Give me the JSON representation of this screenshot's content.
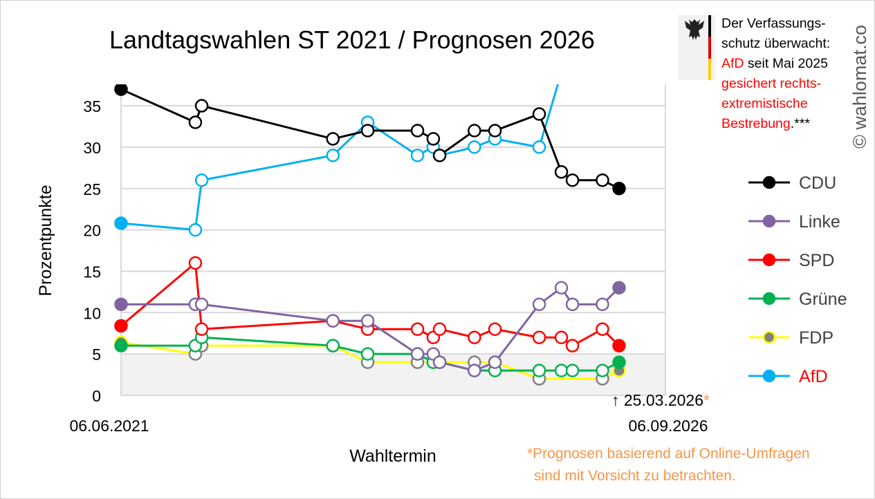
{
  "chart_data": {
    "type": "line",
    "title": "Landtagswahlen ST 2021 / Prognosen 2026",
    "xlabel": "Wahltermin",
    "ylabel": "Prozentpunkte",
    "x_unit": "months since 06.06.2021",
    "x_start_label": "06.06.2021",
    "x_end_label": "06.09.2026",
    "marker_label": "↑ 25.03.2026",
    "marker_asterisk": "*",
    "ylim": [
      0,
      37.5
    ],
    "xlim": [
      0,
      63
    ],
    "yticks": [
      "0",
      "5",
      "10",
      "15",
      "20",
      "25",
      "30",
      "35"
    ],
    "shaded_below": 5,
    "x": [
      0,
      9.4,
      10.2,
      26.8,
      31.2,
      37.5,
      39.5,
      40.3,
      44.7,
      47.3,
      52.9,
      55.7,
      57.1,
      60.9,
      63
    ],
    "series": [
      {
        "name": "CDU",
        "color": "#000000",
        "values": [
          37,
          33,
          35,
          31,
          32,
          32,
          31,
          29,
          32,
          32,
          34,
          27,
          26,
          26,
          25
        ]
      },
      {
        "name": "Linke",
        "color": "#8064a2",
        "values": [
          11,
          11,
          11,
          9,
          9,
          5,
          5,
          4,
          3,
          4,
          11,
          13,
          11,
          11,
          13
        ]
      },
      {
        "name": "SPD",
        "color": "#ff0000",
        "values": [
          8.4,
          16,
          8,
          9,
          8,
          8,
          7,
          8,
          7,
          8,
          7,
          7,
          6,
          8,
          6
        ]
      },
      {
        "name": "Grüne",
        "color": "#00b050",
        "values": [
          6,
          6,
          7,
          6,
          5,
          5,
          4,
          4,
          3,
          3,
          3,
          3,
          3,
          3,
          4
        ]
      },
      {
        "name": "FDP",
        "color": "#ffff00",
        "marker": "#808080",
        "values": [
          6.4,
          5,
          6,
          6,
          4,
          4,
          4,
          4,
          4,
          4,
          2,
          null,
          null,
          2,
          3
        ]
      },
      {
        "name": "AfD",
        "color": "#00b0f0",
        "label_color": "#ff0000",
        "values": [
          20.8,
          20,
          26,
          29,
          33,
          29,
          30,
          29,
          30,
          31,
          30,
          39,
          null,
          null,
          null
        ]
      }
    ],
    "legend_position": "right"
  },
  "note": {
    "line1": "Der Verfassungs-",
    "line2": "schutz überwacht:",
    "afd": "AfD",
    "line3_rest": " seit Mai 2025",
    "line4": "gesichert rechts-",
    "line5": "extremistische",
    "line6": "Bestrebung",
    "line6_rest": ".***"
  },
  "copyright": "© wahlomat.co",
  "footnote": {
    "line1": "*Prognosen basierend auf Online-Umfragen",
    "line2": "sind mit Vorsicht zu betrachten."
  }
}
